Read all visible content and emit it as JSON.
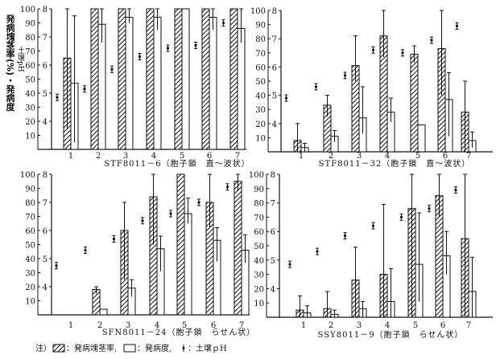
{
  "y_axis_label": "発病塊茎率(%)・発病度",
  "ph_axis_label": "土壌pH",
  "footnote": {
    "prefix": "注）",
    "incidence": "：発病塊茎率,",
    "severity": "：発病度,",
    "ph": "：土壌ｐH"
  },
  "chart_data": [
    {
      "type": "bar",
      "title": "STF8011－6（胞子鎖　直～波状）",
      "categories": [
        "1",
        "2",
        "3",
        "4",
        "5",
        "6",
        "7"
      ],
      "ylim": [
        0,
        100
      ],
      "y_ticks": [
        "10",
        "20",
        "30",
        "40",
        "50",
        "60",
        "70",
        "80",
        "90",
        "100"
      ],
      "ph_lim": [
        3,
        8
      ],
      "ph_ticks": [
        "4",
        "5",
        "6",
        "7",
        "8"
      ],
      "series": [
        {
          "name": "発病塊茎率",
          "values": [
            65,
            100,
            100,
            100,
            100,
            100,
            100
          ],
          "err": [
            [
              15,
              100
            ],
            null,
            null,
            null,
            null,
            null,
            null
          ]
        },
        {
          "name": "発病度",
          "values": [
            47,
            89,
            94,
            94,
            100,
            94,
            86
          ],
          "err": [
            [
              5,
              95
            ],
            [
              76,
              100
            ],
            [
              90,
              100
            ],
            [
              85,
              100
            ],
            null,
            [
              85,
              100
            ],
            [
              76,
              100
            ]
          ]
        },
        {
          "name": "土壌pH",
          "values": [
            4.85,
            5.15,
            5.85,
            6.3,
            6.6,
            6.7,
            7.5
          ]
        }
      ]
    },
    {
      "type": "bar",
      "title": "STF8011－32（胞子鎖　直～波状）",
      "categories": [
        "1",
        "2",
        "3",
        "4",
        "5",
        "6",
        "7"
      ],
      "ylim": [
        0,
        100
      ],
      "y_ticks": [
        "10",
        "20",
        "30",
        "40",
        "50",
        "60",
        "70",
        "80",
        "90",
        "100"
      ],
      "ph_lim": [
        3,
        8
      ],
      "ph_ticks": [
        "4",
        "5",
        "6",
        "7",
        "8"
      ],
      "series": [
        {
          "name": "発病塊茎率",
          "values": [
            8,
            33,
            61,
            82,
            69,
            73,
            28
          ],
          "err": [
            [
              0,
              20
            ],
            [
              25,
              40
            ],
            [
              50,
              82
            ],
            [
              67,
              100
            ],
            [
              63,
              75
            ],
            [
              40,
              100
            ],
            [
              0,
              50
            ]
          ]
        },
        {
          "name": "発病度",
          "values": [
            3,
            11,
            24,
            28,
            19,
            37,
            8
          ],
          "err": [
            [
              0,
              6
            ],
            [
              7,
              15
            ],
            [
              13,
              46
            ],
            [
              21,
              38
            ],
            null,
            [
              11,
              56
            ],
            [
              3,
              14
            ]
          ]
        },
        {
          "name": "土壌pH",
          "values": [
            4.9,
            5.3,
            5.7,
            6.6,
            6.5,
            6.95,
            7.45
          ]
        }
      ]
    },
    {
      "type": "bar",
      "title": "SFN8011－24（胞子鎖　らせん状）",
      "categories": [
        "1",
        "2",
        "3",
        "4",
        "5",
        "6",
        "7"
      ],
      "ylim": [
        0,
        100
      ],
      "y_ticks": [
        "10",
        "20",
        "30",
        "40",
        "50",
        "60",
        "70",
        "80",
        "90",
        "100"
      ],
      "ph_lim": [
        3,
        8
      ],
      "ph_ticks": [
        "4",
        "5",
        "6",
        "7",
        "8"
      ],
      "series": [
        {
          "name": "発病塊茎率",
          "values": [
            0,
            18,
            60,
            84,
            100,
            80,
            95
          ],
          "err": [
            null,
            [
              15,
              20
            ],
            [
              25,
              80
            ],
            [
              50,
              100
            ],
            null,
            [
              62,
              100
            ],
            [
              88,
              100
            ]
          ]
        },
        {
          "name": "発病度",
          "values": [
            0,
            4,
            19,
            47,
            72,
            53,
            46
          ],
          "err": [
            null,
            null,
            [
              13,
              25
            ],
            [
              31,
              56
            ],
            [
              65,
              83
            ],
            [
              38,
              62
            ],
            [
              37,
              57
            ]
          ]
        },
        {
          "name": "土壌pH",
          "values": [
            4.75,
            5.3,
            5.7,
            6.35,
            6.6,
            7.0,
            7.55
          ]
        }
      ]
    },
    {
      "type": "bar",
      "title": "SSY8011－9（胞子鎖　らせん状）",
      "categories": [
        "1",
        "2",
        "3",
        "4",
        "5",
        "6",
        "7"
      ],
      "ylim": [
        0,
        100
      ],
      "y_ticks": [
        "10",
        "20",
        "30",
        "40",
        "50",
        "60",
        "70",
        "80",
        "90",
        "100"
      ],
      "ph_lim": [
        3,
        8
      ],
      "ph_ticks": [
        "4",
        "5",
        "6",
        "7",
        "8"
      ],
      "series": [
        {
          "name": "発病塊茎率",
          "values": [
            5,
            6,
            26,
            30,
            76,
            85,
            55
          ],
          "err": [
            [
              0,
              15
            ],
            [
              0,
              18
            ],
            [
              0,
              49
            ],
            [
              0,
              79
            ],
            [
              0,
              100
            ],
            [
              70,
              100
            ],
            [
              0,
              100
            ]
          ]
        },
        {
          "name": "発病度",
          "values": [
            3,
            2,
            6,
            11,
            37,
            43,
            18
          ],
          "err": [
            [
              0,
              8
            ],
            [
              0,
              5
            ],
            [
              0,
              11
            ],
            [
              0,
              34
            ],
            [
              11,
              73
            ],
            [
              30,
              60
            ],
            [
              0,
              42
            ]
          ]
        },
        {
          "name": "土壌pH",
          "values": [
            4.85,
            5.3,
            5.85,
            6.2,
            6.5,
            6.8,
            7.45
          ]
        }
      ]
    }
  ]
}
